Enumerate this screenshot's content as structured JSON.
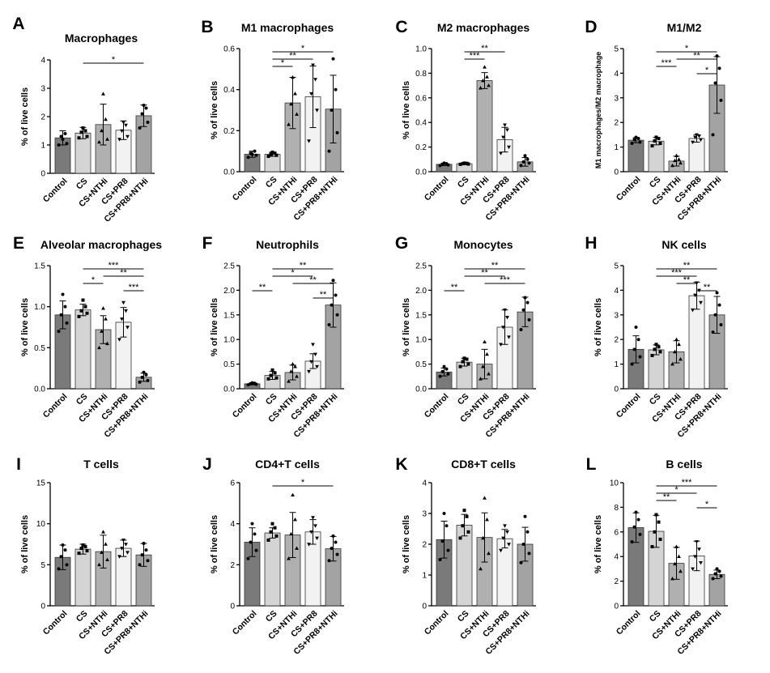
{
  "chart_data": [
    {
      "letter": "A",
      "type": "bar",
      "title": "Macrophages",
      "ylabel": "% of live cells",
      "categories": [
        "Control",
        "CS",
        "CS+NTHi",
        "CS+PR8",
        "CS+PR8+NTHi"
      ],
      "ylim": [
        0,
        4
      ],
      "ticks": [
        0,
        1,
        2,
        3,
        4
      ],
      "values": [
        1.25,
        1.42,
        1.72,
        1.52,
        2.03
      ],
      "errors": [
        0.25,
        0.2,
        0.72,
        0.33,
        0.38
      ],
      "points": [
        [
          1.0,
          1.05,
          1.3,
          1.4,
          1.2
        ],
        [
          1.25,
          1.3,
          1.45,
          1.5,
          1.6
        ],
        [
          1.1,
          1.2,
          1.5,
          1.9,
          2.8
        ],
        [
          1.2,
          1.3,
          1.5,
          1.7,
          1.8
        ],
        [
          1.6,
          1.8,
          2.1,
          2.3,
          2.4
        ]
      ],
      "significance": [
        {
          "from": 1,
          "to": 4,
          "label": "*"
        }
      ]
    },
    {
      "letter": "B",
      "type": "bar",
      "title": "M1 macrophages",
      "ylabel": "% of live cells",
      "categories": [
        "Control",
        "CS",
        "CS+NTHi",
        "CS+PR8",
        "CS+PR8+NTHi"
      ],
      "ylim": [
        0,
        0.6
      ],
      "ticks": [
        "0.0",
        "0.2",
        "0.4",
        "0.6"
      ],
      "values": [
        0.085,
        0.085,
        0.335,
        0.365,
        0.305
      ],
      "errors": [
        0.015,
        0.01,
        0.125,
        0.15,
        0.165
      ],
      "points": [
        [
          0.07,
          0.08,
          0.09,
          0.1,
          0.085
        ],
        [
          0.075,
          0.08,
          0.085,
          0.09,
          0.095
        ],
        [
          0.23,
          0.28,
          0.33,
          0.38,
          0.46
        ],
        [
          0.15,
          0.3,
          0.38,
          0.45,
          0.52
        ],
        [
          0.1,
          0.19,
          0.3,
          0.4,
          0.55
        ]
      ],
      "significance": [
        {
          "from": 1,
          "to": 2,
          "label": "*"
        },
        {
          "from": 1,
          "to": 3,
          "label": "**"
        },
        {
          "from": 1,
          "to": 4,
          "label": "*"
        }
      ]
    },
    {
      "letter": "C",
      "type": "bar",
      "title": "M2 macrophages",
      "ylabel": "% of live cells",
      "categories": [
        "Control",
        "CS",
        "CS+NTHi",
        "CS+PR8",
        "CS+PR8+NTHi"
      ],
      "ylim": [
        0,
        1.0
      ],
      "ticks": [
        "0.0",
        "0.2",
        "0.4",
        "0.6",
        "0.8",
        "1.0"
      ],
      "values": [
        0.06,
        0.065,
        0.74,
        0.26,
        0.08
      ],
      "errors": [
        0.01,
        0.008,
        0.065,
        0.1,
        0.035
      ],
      "points": [
        [
          0.05,
          0.055,
          0.06,
          0.065,
          0.07
        ],
        [
          0.06,
          0.062,
          0.065,
          0.068,
          0.07
        ],
        [
          0.68,
          0.7,
          0.74,
          0.77,
          0.85
        ],
        [
          0.15,
          0.2,
          0.28,
          0.34,
          0.38
        ],
        [
          0.05,
          0.07,
          0.08,
          0.1,
          0.13
        ]
      ],
      "significance": [
        {
          "from": 1,
          "to": 2,
          "label": "***"
        },
        {
          "from": 1,
          "to": 3,
          "label": "**"
        }
      ]
    },
    {
      "letter": "D",
      "type": "bar",
      "title": "M1/M2",
      "ylabel": "M1 macrophages/M2 macrophage",
      "categories": [
        "Control",
        "CS",
        "CS+NTHi",
        "CS+PR8",
        "CS+PR8+NTHi"
      ],
      "ylim": [
        0,
        5
      ],
      "ticks": [
        0,
        1,
        2,
        3,
        4,
        5
      ],
      "values": [
        1.28,
        1.24,
        0.43,
        1.35,
        3.52
      ],
      "errors": [
        0.1,
        0.15,
        0.2,
        0.15,
        1.15
      ],
      "points": [
        [
          1.15,
          1.2,
          1.3,
          1.35,
          1.4
        ],
        [
          1.05,
          1.15,
          1.25,
          1.35,
          1.4
        ],
        [
          0.25,
          0.35,
          0.45,
          0.5,
          0.65
        ],
        [
          1.2,
          1.3,
          1.4,
          1.45,
          1.5
        ],
        [
          1.5,
          2.9,
          3.6,
          4.2,
          4.7
        ]
      ],
      "significance": [
        {
          "from": 1,
          "to": 2,
          "label": "***"
        },
        {
          "from": 1,
          "to": 4,
          "label": "*"
        },
        {
          "from": 3,
          "to": 4,
          "label": "*"
        },
        {
          "from": 2,
          "to": 4,
          "label": "**"
        }
      ]
    },
    {
      "letter": "E",
      "type": "bar",
      "title": "Alveolar macrophages",
      "ylabel": "% of live cells",
      "categories": [
        "Control",
        "CS",
        "CS+NTHi",
        "CS+PR8",
        "CS+PR8+NTHi"
      ],
      "ylim": [
        0,
        1.5
      ],
      "ticks": [
        "0.0",
        "0.5",
        "1.0",
        "1.5"
      ],
      "values": [
        0.9,
        0.96,
        0.72,
        0.81,
        0.14
      ],
      "errors": [
        0.17,
        0.07,
        0.17,
        0.18,
        0.05
      ],
      "points": [
        [
          0.7,
          0.8,
          0.9,
          1.0,
          1.15
        ],
        [
          0.88,
          0.92,
          0.95,
          1.0,
          1.08
        ],
        [
          0.5,
          0.55,
          0.7,
          0.85,
          0.98
        ],
        [
          0.6,
          0.75,
          0.85,
          0.95,
          1.05
        ],
        [
          0.08,
          0.1,
          0.14,
          0.17,
          0.2
        ]
      ],
      "significance": [
        {
          "from": 1,
          "to": 2,
          "label": "*"
        },
        {
          "from": 1,
          "to": 4,
          "label": "***"
        },
        {
          "from": 3,
          "to": 4,
          "label": "***"
        },
        {
          "from": 2,
          "to": 4,
          "label": "**"
        }
      ]
    },
    {
      "letter": "F",
      "type": "bar",
      "title": "Neutrophils",
      "ylabel": "% of live cells",
      "categories": [
        "Control",
        "CS",
        "CS+NTHi",
        "CS+PR8",
        "CS+PR8+NTHi"
      ],
      "ylim": [
        0,
        2.5
      ],
      "ticks": [
        "0.0",
        "0.5",
        "1.0",
        "1.5",
        "2.0",
        "2.5"
      ],
      "values": [
        0.1,
        0.27,
        0.33,
        0.56,
        1.7
      ],
      "errors": [
        0.02,
        0.08,
        0.15,
        0.15,
        0.45
      ],
      "points": [
        [
          0.08,
          0.09,
          0.1,
          0.11,
          0.12
        ],
        [
          0.2,
          0.22,
          0.27,
          0.32,
          0.38
        ],
        [
          0.15,
          0.25,
          0.35,
          0.45,
          0.5
        ],
        [
          0.35,
          0.45,
          0.55,
          0.7,
          0.9
        ],
        [
          1.3,
          1.5,
          1.7,
          1.9,
          2.2
        ]
      ],
      "significance": [
        {
          "from": 0,
          "to": 1,
          "label": "**"
        },
        {
          "from": 1,
          "to": 3,
          "label": "*"
        },
        {
          "from": 1,
          "to": 4,
          "label": "**"
        },
        {
          "from": 3,
          "to": 4,
          "label": "**"
        },
        {
          "from": 2,
          "to": 4,
          "label": "**"
        }
      ]
    },
    {
      "letter": "G",
      "type": "bar",
      "title": "Monocytes",
      "ylabel": "% of live cells",
      "categories": [
        "Control",
        "CS",
        "CS+NTHi",
        "CS+PR8",
        "CS+PR8+NTHi"
      ],
      "ylim": [
        0,
        2.5
      ],
      "ticks": [
        "0.0",
        "0.5",
        "1.0",
        "1.5",
        "2.0",
        "2.5"
      ],
      "values": [
        0.34,
        0.54,
        0.5,
        1.25,
        1.56
      ],
      "errors": [
        0.08,
        0.08,
        0.3,
        0.35,
        0.3
      ],
      "points": [
        [
          0.25,
          0.3,
          0.35,
          0.4,
          0.45
        ],
        [
          0.45,
          0.5,
          0.55,
          0.6,
          0.62
        ],
        [
          0.2,
          0.3,
          0.45,
          0.7,
          0.95
        ],
        [
          0.9,
          1.05,
          1.25,
          1.45,
          1.6
        ],
        [
          1.2,
          1.4,
          1.6,
          1.75,
          1.85
        ]
      ],
      "significance": [
        {
          "from": 0,
          "to": 1,
          "label": "**"
        },
        {
          "from": 1,
          "to": 3,
          "label": "**"
        },
        {
          "from": 1,
          "to": 4,
          "label": "**"
        },
        {
          "from": 2,
          "to": 4,
          "label": "***"
        }
      ]
    },
    {
      "letter": "H",
      "type": "bar",
      "title": "NK cells",
      "ylabel": "% of live cells",
      "categories": [
        "Control",
        "CS",
        "CS+NTHi",
        "CS+PR8",
        "CS+PR8+NTHi"
      ],
      "ylim": [
        0,
        5
      ],
      "ticks": [
        0,
        1,
        2,
        3,
        4,
        5
      ],
      "values": [
        1.6,
        1.58,
        1.5,
        3.78,
        3.0
      ],
      "errors": [
        0.55,
        0.2,
        0.45,
        0.55,
        0.75
      ],
      "points": [
        [
          1.0,
          1.3,
          1.6,
          2.0,
          2.5
        ],
        [
          1.35,
          1.5,
          1.6,
          1.7,
          1.8
        ],
        [
          1.0,
          1.2,
          1.5,
          1.8,
          2.0
        ],
        [
          3.2,
          3.5,
          3.8,
          4.0,
          4.3
        ],
        [
          2.3,
          2.6,
          3.0,
          3.4,
          3.9
        ]
      ],
      "significance": [
        {
          "from": 1,
          "to": 3,
          "label": "***"
        },
        {
          "from": 1,
          "to": 4,
          "label": "**"
        },
        {
          "from": 2,
          "to": 3,
          "label": "**"
        },
        {
          "from": 3,
          "to": 4,
          "label": "**"
        }
      ]
    },
    {
      "letter": "I",
      "type": "bar",
      "title": "T cells",
      "ylabel": "% of live cells",
      "categories": [
        "Control",
        "CS",
        "CS+NTHi",
        "CS+PR8",
        "CS+PR8+NTHi"
      ],
      "ylim": [
        0,
        15
      ],
      "ticks": [
        0,
        5,
        10,
        15
      ],
      "values": [
        5.9,
        6.9,
        6.6,
        7.0,
        6.2
      ],
      "errors": [
        1.5,
        0.6,
        2.0,
        1.0,
        1.4
      ],
      "points": [
        [
          4.5,
          5.0,
          6.0,
          6.8,
          7.4
        ],
        [
          6.4,
          6.7,
          7.0,
          7.2,
          7.4
        ],
        [
          5.0,
          5.6,
          6.5,
          7.5,
          9.0
        ],
        [
          6.0,
          6.5,
          7.0,
          7.5,
          8.0
        ],
        [
          5.0,
          5.5,
          6.2,
          6.8,
          7.6
        ]
      ],
      "significance": []
    },
    {
      "letter": "J",
      "type": "bar",
      "title": "CD4+T cells",
      "ylabel": "% of live cells",
      "categories": [
        "Control",
        "CS",
        "CS+NTHi",
        "CS+PR8",
        "CS+PR8+NTHi"
      ],
      "ylim": [
        0,
        6
      ],
      "ticks": [
        0,
        2,
        4,
        6
      ],
      "values": [
        3.1,
        3.55,
        3.45,
        3.6,
        2.78
      ],
      "errors": [
        0.7,
        0.25,
        1.1,
        0.6,
        0.6
      ],
      "points": [
        [
          2.3,
          2.7,
          3.1,
          3.5,
          4.0
        ],
        [
          3.2,
          3.4,
          3.6,
          3.8,
          4.0
        ],
        [
          2.3,
          2.8,
          3.5,
          4.2,
          5.4
        ],
        [
          3.0,
          3.3,
          3.6,
          3.9,
          4.3
        ],
        [
          2.2,
          2.5,
          2.8,
          3.1,
          3.4
        ]
      ],
      "significance": [
        {
          "from": 1,
          "to": 4,
          "label": "*"
        }
      ]
    },
    {
      "letter": "K",
      "type": "bar",
      "title": "CD8+T cells",
      "ylabel": "% of live cells",
      "categories": [
        "Control",
        "CS",
        "CS+NTHi",
        "CS+PR8",
        "CS+PR8+NTHi"
      ],
      "ylim": [
        0,
        4
      ],
      "ticks": [
        0,
        1,
        2,
        3,
        4
      ],
      "values": [
        2.15,
        2.62,
        2.22,
        2.18,
        2.0
      ],
      "errors": [
        0.6,
        0.35,
        0.8,
        0.3,
        0.55
      ],
      "points": [
        [
          1.5,
          1.8,
          2.1,
          2.6,
          3.0
        ],
        [
          2.2,
          2.4,
          2.6,
          2.9,
          3.1
        ],
        [
          1.2,
          1.7,
          2.2,
          2.8,
          3.5
        ],
        [
          1.8,
          2.0,
          2.2,
          2.4,
          2.6
        ],
        [
          1.4,
          1.7,
          2.0,
          2.4,
          2.9
        ]
      ],
      "significance": []
    },
    {
      "letter": "L",
      "type": "bar",
      "title": "B cells",
      "ylabel": "% of live cells",
      "categories": [
        "Control",
        "CS",
        "CS+NTHi",
        "CS+PR8",
        "CS+PR8+NTHi"
      ],
      "ylim": [
        0,
        10
      ],
      "ticks": [
        0,
        2,
        4,
        6,
        8,
        10
      ],
      "values": [
        6.35,
        6.05,
        3.45,
        4.05,
        2.55
      ],
      "errors": [
        1.2,
        1.3,
        1.3,
        1.2,
        0.35
      ],
      "points": [
        [
          5.2,
          5.8,
          6.4,
          7.0,
          7.6
        ],
        [
          4.8,
          5.4,
          6.0,
          6.8,
          7.4
        ],
        [
          2.2,
          2.8,
          3.4,
          4.0,
          4.8
        ],
        [
          3.0,
          3.5,
          4.0,
          4.6,
          5.2
        ],
        [
          2.2,
          2.4,
          2.6,
          2.8,
          3.0
        ]
      ],
      "significance": [
        {
          "from": 1,
          "to": 2,
          "label": "**"
        },
        {
          "from": 1,
          "to": 3,
          "label": "*"
        },
        {
          "from": 1,
          "to": 4,
          "label": "***"
        },
        {
          "from": 3,
          "to": 4,
          "label": "*"
        }
      ]
    }
  ],
  "colors": {
    "bars": [
      "#7a7a7a",
      "#d4d4d4",
      "#b0b0b0",
      "#f2f2f2",
      "#a3a3a3"
    ]
  }
}
